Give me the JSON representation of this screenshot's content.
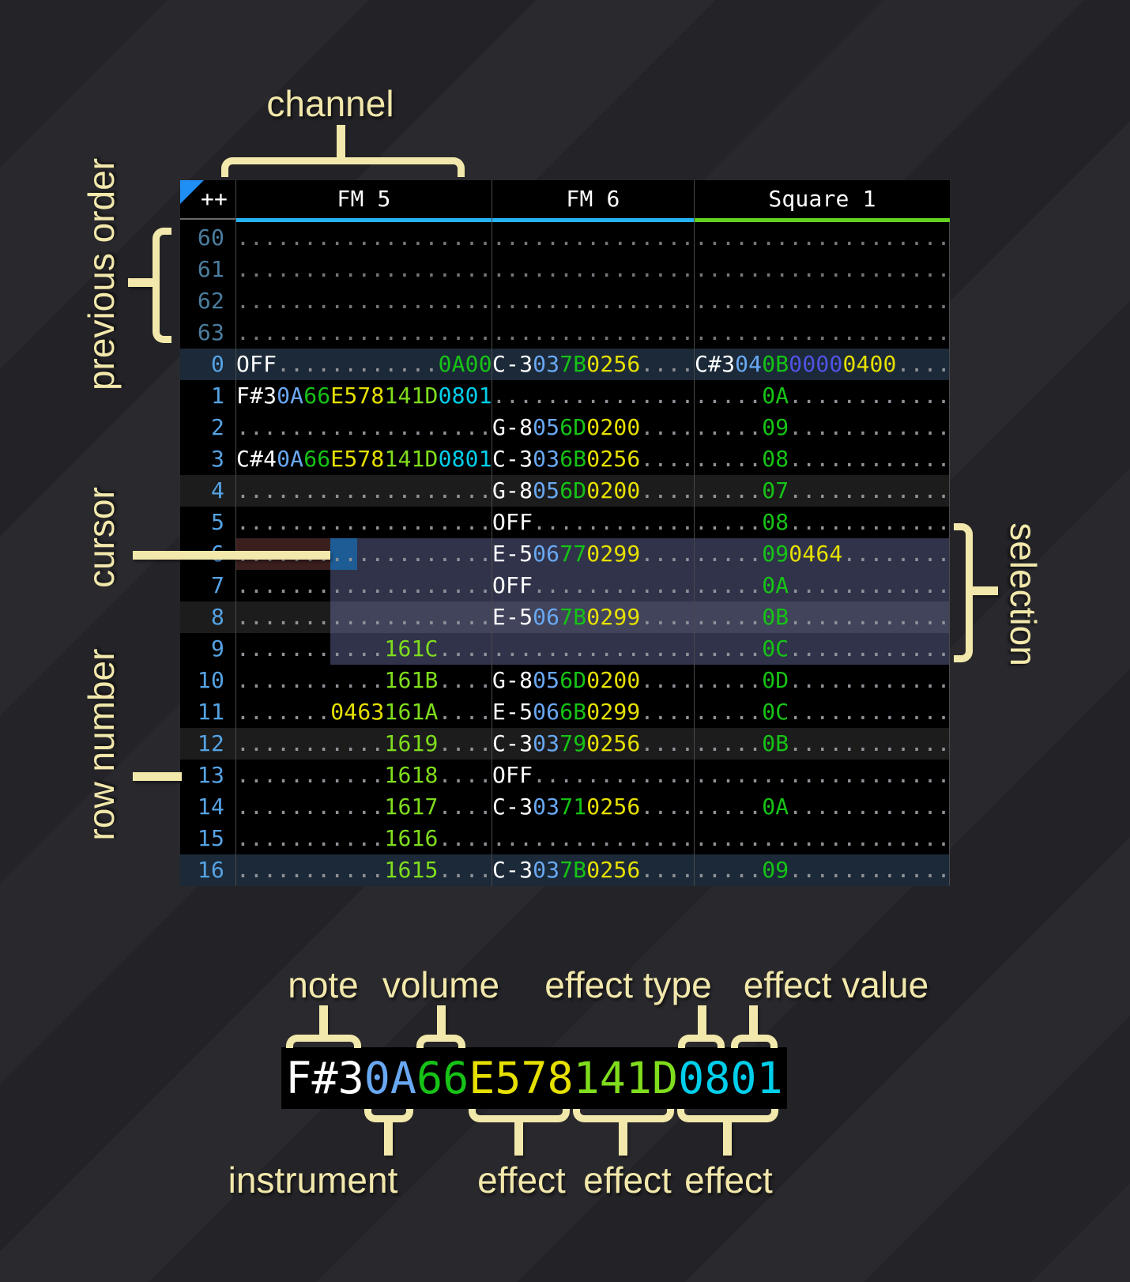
{
  "table": {
    "corner": "++",
    "channels": [
      {
        "key": "fm5",
        "name": "FM 5",
        "underline": "#25b3f5"
      },
      {
        "key": "fm6",
        "name": "FM 6",
        "underline": "#25b3f5"
      },
      {
        "key": "square1",
        "name": "Square 1",
        "underline": "#62d11f"
      }
    ],
    "rows": [
      {
        "num": "60",
        "kind": "prev",
        "cells": [
          [
            {
              "t": "...................",
              "c": "pd"
            }
          ],
          [
            {
              "t": "...............",
              "c": "pd"
            }
          ],
          [
            {
              "t": "...................",
              "c": "pd"
            }
          ]
        ]
      },
      {
        "num": "61",
        "kind": "prev",
        "cells": [
          [
            {
              "t": "...................",
              "c": "pd"
            }
          ],
          [
            {
              "t": "...............",
              "c": "pd"
            }
          ],
          [
            {
              "t": "...................",
              "c": "pd"
            }
          ]
        ]
      },
      {
        "num": "62",
        "kind": "prev",
        "cells": [
          [
            {
              "t": "...................",
              "c": "pd"
            }
          ],
          [
            {
              "t": "...............",
              "c": "pd"
            }
          ],
          [
            {
              "t": "...................",
              "c": "pd"
            }
          ]
        ]
      },
      {
        "num": "63",
        "kind": "prev",
        "cells": [
          [
            {
              "t": "...................",
              "c": "pd"
            }
          ],
          [
            {
              "t": "...............",
              "c": "pd"
            }
          ],
          [
            {
              "t": "...................",
              "c": "pd"
            }
          ]
        ]
      },
      {
        "num": "0",
        "kind": "hl16",
        "cells": [
          [
            {
              "t": "OFF",
              "c": "w"
            },
            {
              "t": "............",
              "c": "d"
            },
            {
              "t": "0A00",
              "c": "v"
            }
          ],
          [
            {
              "t": "C-3",
              "c": "w"
            },
            {
              "t": "03",
              "c": "i"
            },
            {
              "t": "7B",
              "c": "v"
            },
            {
              "t": "0256",
              "c": "y"
            },
            {
              "t": "....",
              "c": "d"
            }
          ],
          [
            {
              "t": "C#3",
              "c": "w"
            },
            {
              "t": "04",
              "c": "i"
            },
            {
              "t": "0B",
              "c": "v"
            },
            {
              "t": "0000",
              "c": "vi"
            },
            {
              "t": "0400",
              "c": "y"
            },
            {
              "t": "....",
              "c": "d"
            }
          ]
        ]
      },
      {
        "num": "1",
        "kind": "",
        "cells": [
          [
            {
              "t": "F#3",
              "c": "w"
            },
            {
              "t": "0A",
              "c": "i"
            },
            {
              "t": "66",
              "c": "v"
            },
            {
              "t": "E578",
              "c": "y"
            },
            {
              "t": "141D",
              "c": "lg"
            },
            {
              "t": "0801",
              "c": "cy"
            }
          ],
          [
            {
              "t": "...............",
              "c": "d"
            }
          ],
          [
            {
              "t": ".....",
              "c": "d"
            },
            {
              "t": "0A",
              "c": "v"
            },
            {
              "t": "............",
              "c": "d"
            }
          ]
        ]
      },
      {
        "num": "2",
        "kind": "",
        "cells": [
          [
            {
              "t": "...................",
              "c": "d"
            }
          ],
          [
            {
              "t": "G-8",
              "c": "w"
            },
            {
              "t": "05",
              "c": "i"
            },
            {
              "t": "6D",
              "c": "v"
            },
            {
              "t": "0200",
              "c": "y"
            },
            {
              "t": "....",
              "c": "d"
            }
          ],
          [
            {
              "t": ".....",
              "c": "d"
            },
            {
              "t": "09",
              "c": "v"
            },
            {
              "t": "............",
              "c": "d"
            }
          ]
        ]
      },
      {
        "num": "3",
        "kind": "",
        "cells": [
          [
            {
              "t": "C#4",
              "c": "w"
            },
            {
              "t": "0A",
              "c": "i"
            },
            {
              "t": "66",
              "c": "v"
            },
            {
              "t": "E578",
              "c": "y"
            },
            {
              "t": "141D",
              "c": "lg"
            },
            {
              "t": "0801",
              "c": "cy"
            }
          ],
          [
            {
              "t": "C-3",
              "c": "w"
            },
            {
              "t": "03",
              "c": "i"
            },
            {
              "t": "6B",
              "c": "v"
            },
            {
              "t": "0256",
              "c": "y"
            },
            {
              "t": "....",
              "c": "d"
            }
          ],
          [
            {
              "t": ".....",
              "c": "d"
            },
            {
              "t": "08",
              "c": "v"
            },
            {
              "t": "............",
              "c": "d"
            }
          ]
        ]
      },
      {
        "num": "4",
        "kind": "hl4",
        "cells": [
          [
            {
              "t": "...................",
              "c": "d"
            }
          ],
          [
            {
              "t": "G-8",
              "c": "w"
            },
            {
              "t": "05",
              "c": "i"
            },
            {
              "t": "6D",
              "c": "v"
            },
            {
              "t": "0200",
              "c": "y"
            },
            {
              "t": "....",
              "c": "d"
            }
          ],
          [
            {
              "t": ".....",
              "c": "d"
            },
            {
              "t": "07",
              "c": "v"
            },
            {
              "t": "............",
              "c": "d"
            }
          ]
        ]
      },
      {
        "num": "5",
        "kind": "",
        "cells": [
          [
            {
              "t": "...................",
              "c": "d"
            }
          ],
          [
            {
              "t": "OFF",
              "c": "w"
            },
            {
              "t": "............",
              "c": "d"
            }
          ],
          [
            {
              "t": ".....",
              "c": "d"
            },
            {
              "t": "08",
              "c": "v"
            },
            {
              "t": "............",
              "c": "d"
            }
          ]
        ]
      },
      {
        "num": "6",
        "kind": "cursor",
        "cells": [
          [
            {
              "t": "...................",
              "c": "d"
            }
          ],
          [
            {
              "t": "E-5",
              "c": "w"
            },
            {
              "t": "06",
              "c": "i"
            },
            {
              "t": "77",
              "c": "v"
            },
            {
              "t": "0299",
              "c": "y"
            },
            {
              "t": "....",
              "c": "d"
            }
          ],
          [
            {
              "t": ".....",
              "c": "d"
            },
            {
              "t": "09",
              "c": "v"
            },
            {
              "t": "0464",
              "c": "y"
            },
            {
              "t": "........",
              "c": "d"
            }
          ]
        ]
      },
      {
        "num": "7",
        "kind": "",
        "cells": [
          [
            {
              "t": "...................",
              "c": "d"
            }
          ],
          [
            {
              "t": "OFF",
              "c": "w"
            },
            {
              "t": "............",
              "c": "d"
            }
          ],
          [
            {
              "t": ".....",
              "c": "d"
            },
            {
              "t": "0A",
              "c": "v"
            },
            {
              "t": "............",
              "c": "d"
            }
          ]
        ]
      },
      {
        "num": "8",
        "kind": "hl4",
        "cells": [
          [
            {
              "t": "...................",
              "c": "d"
            }
          ],
          [
            {
              "t": "E-5",
              "c": "w"
            },
            {
              "t": "06",
              "c": "i"
            },
            {
              "t": "7B",
              "c": "v"
            },
            {
              "t": "0299",
              "c": "y"
            },
            {
              "t": "....",
              "c": "d"
            }
          ],
          [
            {
              "t": ".....",
              "c": "d"
            },
            {
              "t": "0B",
              "c": "v"
            },
            {
              "t": "............",
              "c": "d"
            }
          ]
        ]
      },
      {
        "num": "9",
        "kind": "",
        "cells": [
          [
            {
              "t": "...........",
              "c": "d"
            },
            {
              "t": "161C",
              "c": "lg"
            },
            {
              "t": "....",
              "c": "d"
            }
          ],
          [
            {
              "t": "...............",
              "c": "d"
            }
          ],
          [
            {
              "t": ".....",
              "c": "d"
            },
            {
              "t": "0C",
              "c": "v"
            },
            {
              "t": "............",
              "c": "d"
            }
          ]
        ]
      },
      {
        "num": "10",
        "kind": "",
        "cells": [
          [
            {
              "t": "...........",
              "c": "d"
            },
            {
              "t": "161B",
              "c": "lg"
            },
            {
              "t": "....",
              "c": "d"
            }
          ],
          [
            {
              "t": "G-8",
              "c": "w"
            },
            {
              "t": "05",
              "c": "i"
            },
            {
              "t": "6D",
              "c": "v"
            },
            {
              "t": "0200",
              "c": "y"
            },
            {
              "t": "....",
              "c": "d"
            }
          ],
          [
            {
              "t": ".....",
              "c": "d"
            },
            {
              "t": "0D",
              "c": "v"
            },
            {
              "t": "............",
              "c": "d"
            }
          ]
        ]
      },
      {
        "num": "11",
        "kind": "",
        "cells": [
          [
            {
              "t": ".......",
              "c": "d"
            },
            {
              "t": "0463",
              "c": "y"
            },
            {
              "t": "161A",
              "c": "lg"
            },
            {
              "t": "....",
              "c": "d"
            }
          ],
          [
            {
              "t": "E-5",
              "c": "w"
            },
            {
              "t": "06",
              "c": "i"
            },
            {
              "t": "6B",
              "c": "v"
            },
            {
              "t": "0299",
              "c": "y"
            },
            {
              "t": "....",
              "c": "d"
            }
          ],
          [
            {
              "t": ".....",
              "c": "d"
            },
            {
              "t": "0C",
              "c": "v"
            },
            {
              "t": "............",
              "c": "d"
            }
          ]
        ]
      },
      {
        "num": "12",
        "kind": "hl4",
        "cells": [
          [
            {
              "t": "...........",
              "c": "d"
            },
            {
              "t": "1619",
              "c": "lg"
            },
            {
              "t": "....",
              "c": "d"
            }
          ],
          [
            {
              "t": "C-3",
              "c": "w"
            },
            {
              "t": "03",
              "c": "i"
            },
            {
              "t": "79",
              "c": "v"
            },
            {
              "t": "0256",
              "c": "y"
            },
            {
              "t": "....",
              "c": "d"
            }
          ],
          [
            {
              "t": ".....",
              "c": "d"
            },
            {
              "t": "0B",
              "c": "v"
            },
            {
              "t": "............",
              "c": "d"
            }
          ]
        ]
      },
      {
        "num": "13",
        "kind": "",
        "cells": [
          [
            {
              "t": "...........",
              "c": "d"
            },
            {
              "t": "1618",
              "c": "lg"
            },
            {
              "t": "....",
              "c": "d"
            }
          ],
          [
            {
              "t": "OFF",
              "c": "w"
            },
            {
              "t": "............",
              "c": "d"
            }
          ],
          [
            {
              "t": "...................",
              "c": "d"
            }
          ]
        ]
      },
      {
        "num": "14",
        "kind": "",
        "cells": [
          [
            {
              "t": "...........",
              "c": "d"
            },
            {
              "t": "1617",
              "c": "lg"
            },
            {
              "t": "....",
              "c": "d"
            }
          ],
          [
            {
              "t": "C-3",
              "c": "w"
            },
            {
              "t": "03",
              "c": "i"
            },
            {
              "t": "71",
              "c": "v"
            },
            {
              "t": "0256",
              "c": "y"
            },
            {
              "t": "....",
              "c": "d"
            }
          ],
          [
            {
              "t": ".....",
              "c": "d"
            },
            {
              "t": "0A",
              "c": "v"
            },
            {
              "t": "............",
              "c": "d"
            }
          ]
        ]
      },
      {
        "num": "15",
        "kind": "",
        "cells": [
          [
            {
              "t": "...........",
              "c": "d"
            },
            {
              "t": "1616",
              "c": "lg"
            },
            {
              "t": "....",
              "c": "d"
            }
          ],
          [
            {
              "t": "...............",
              "c": "d"
            }
          ],
          [
            {
              "t": "...................",
              "c": "d"
            }
          ]
        ]
      },
      {
        "num": "16",
        "kind": "hl16",
        "cells": [
          [
            {
              "t": "...........",
              "c": "d"
            },
            {
              "t": "1615",
              "c": "lg"
            },
            {
              "t": "....",
              "c": "d"
            }
          ],
          [
            {
              "t": "C-3",
              "c": "w"
            },
            {
              "t": "03",
              "c": "i"
            },
            {
              "t": "7B",
              "c": "v"
            },
            {
              "t": "0256",
              "c": "y"
            },
            {
              "t": "....",
              "c": "d"
            }
          ],
          [
            {
              "t": ".....",
              "c": "d"
            },
            {
              "t": "09",
              "c": "v"
            },
            {
              "t": "............",
              "c": "d"
            }
          ]
        ]
      }
    ]
  },
  "annotations": {
    "channel": "channel",
    "previous_order": "previous order",
    "cursor": "cursor",
    "row_number": "row number",
    "selection": "selection",
    "note": "note",
    "volume": "volume",
    "effect_type": "effect type",
    "effect_value": "effect value",
    "instrument": "instrument",
    "effect1": "effect",
    "effect2": "effect",
    "effect3": "effect"
  },
  "sample": {
    "segments": [
      {
        "t": "F#3",
        "c": "w"
      },
      {
        "t": "0A",
        "c": "i"
      },
      {
        "t": "66",
        "c": "v"
      },
      {
        "t": "E578",
        "c": "y"
      },
      {
        "t": "141D",
        "c": "lg"
      },
      {
        "t": "0801",
        "c": "cy"
      }
    ]
  },
  "colors": {
    "annotation_cream": "#f2e8ab",
    "note_white": "#ffffff",
    "instrument_blue": "#69a8f2",
    "volume_green": "#16c316",
    "effect_yellow": "#e6e000",
    "effect_light_green": "#7fdd1d",
    "effect_cyan": "#00cfeb",
    "effect_violet": "#5153e3",
    "fm_underline_blue": "#25b3f5",
    "square_underline_green": "#62d11f",
    "cursor_blue": "#1d5c94",
    "cursor_row_red": "#3b1f1f",
    "selection_overlay": "#2f334a",
    "row_number_blue": "#55a3e4",
    "prev_row_number_blue": "#4b7d9e",
    "corner_triangle_blue": "#1f8ff5"
  }
}
